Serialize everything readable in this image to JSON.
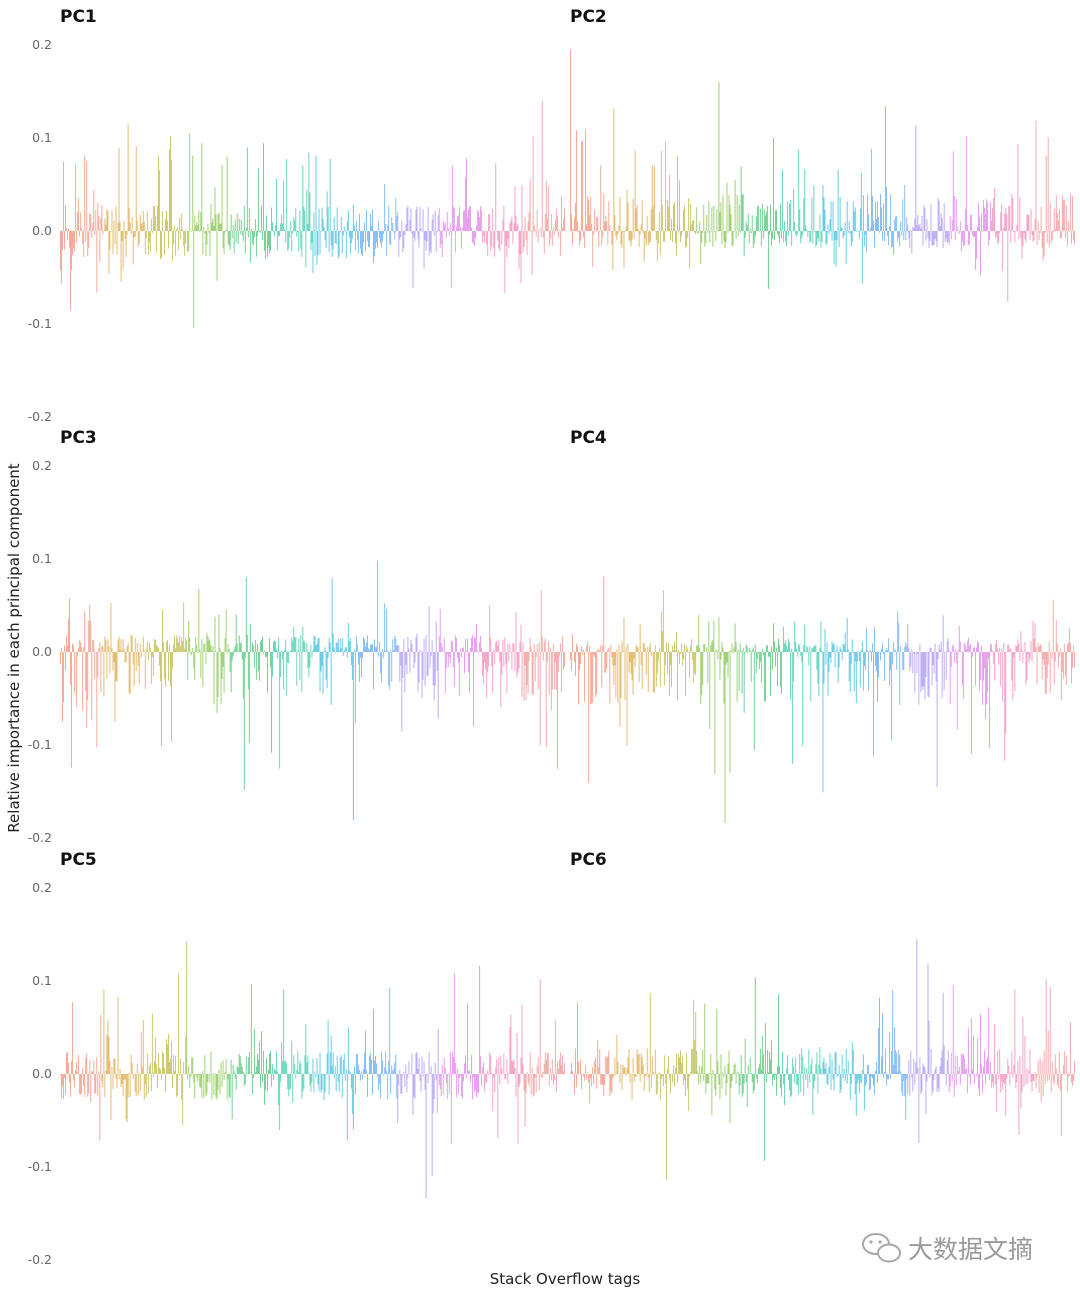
{
  "chart_data": {
    "type": "bar",
    "xlabel": "Stack Overflow tags",
    "ylabel": "Relative importance in each principal component",
    "ylim": [
      -0.2,
      0.2
    ],
    "yticks": [
      0.2,
      0.1,
      0.0,
      -0.1,
      -0.2
    ],
    "ytick_labels": [
      "0.2",
      "0.1",
      "0.0",
      "-0.1",
      "-0.2"
    ],
    "n_tags": 500,
    "tag_color_sequence": [
      "#f0896f",
      "#d9a13a",
      "#b9b43a",
      "#7cbf3d",
      "#3fbf6a",
      "#2fc6a4",
      "#30b8d6",
      "#5aa4ee",
      "#a38ef0",
      "#de7ae8",
      "#f07fb2",
      "#f08a8a"
    ],
    "facets": [
      {
        "name": "PC1",
        "peak_max": 0.14,
        "peak_min": -0.104
      },
      {
        "name": "PC2",
        "peak_max": 0.195,
        "peak_min": -0.076
      },
      {
        "name": "PC3",
        "peak_max": 0.098,
        "peak_min": -0.181
      },
      {
        "name": "PC4",
        "peak_max": 0.081,
        "peak_min": -0.184
      },
      {
        "name": "PC5",
        "peak_max": 0.142,
        "peak_min": -0.134
      },
      {
        "name": "PC6",
        "peak_max": 0.145,
        "peak_min": -0.114
      }
    ]
  },
  "watermark": {
    "text": "大数据文摘",
    "icon": "wechat-icon"
  }
}
